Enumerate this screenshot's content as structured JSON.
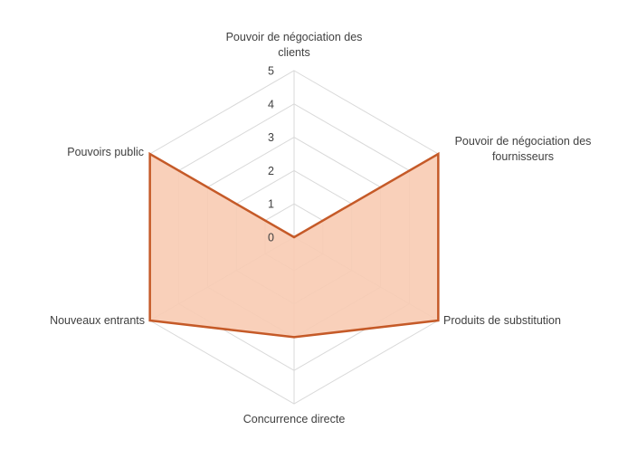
{
  "chart_data": {
    "type": "radar",
    "title": "",
    "categories": [
      "Pouvoir de négociation des clients",
      "Pouvoir de négociation des fournisseurs",
      "Produits de substitution",
      "Concurrence directe",
      "Nouveaux entrants",
      "Pouvoirs public"
    ],
    "category_lines": [
      [
        "Pouvoir de négociation des",
        "clients"
      ],
      [
        "Pouvoir de négociation des",
        "fournisseurs"
      ],
      [
        "Produits de substitution"
      ],
      [
        "Concurrence directe"
      ],
      [
        "Nouveaux entrants"
      ],
      [
        "Pouvoirs public"
      ]
    ],
    "series": [
      {
        "values": [
          0,
          5,
          5,
          3,
          5,
          5
        ]
      }
    ],
    "ticks": [
      "0",
      "1",
      "2",
      "3",
      "4",
      "5"
    ],
    "rlim": [
      0,
      5
    ],
    "grid": true,
    "legend": "none",
    "colors": {
      "line": "#c55a28",
      "fill": "#f8cbb3",
      "grid": "#d9d9d9",
      "text": "#404040"
    }
  }
}
